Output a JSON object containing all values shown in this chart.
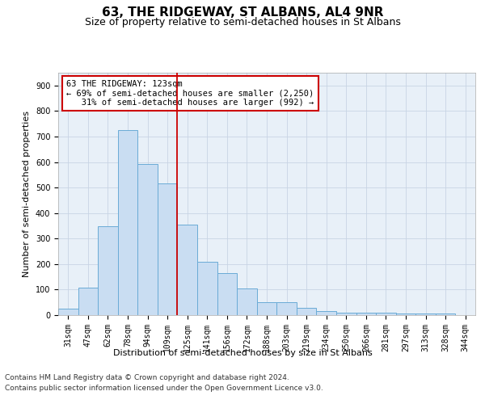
{
  "title": "63, THE RIDGEWAY, ST ALBANS, AL4 9NR",
  "subtitle": "Size of property relative to semi-detached houses in St Albans",
  "xlabel": "Distribution of semi-detached houses by size in St Albans",
  "ylabel": "Number of semi-detached properties",
  "categories": [
    "31sqm",
    "47sqm",
    "62sqm",
    "78sqm",
    "94sqm",
    "109sqm",
    "125sqm",
    "141sqm",
    "156sqm",
    "172sqm",
    "188sqm",
    "203sqm",
    "219sqm",
    "234sqm",
    "250sqm",
    "266sqm",
    "281sqm",
    "297sqm",
    "313sqm",
    "328sqm",
    "344sqm"
  ],
  "values": [
    25,
    108,
    348,
    725,
    593,
    515,
    355,
    208,
    165,
    103,
    50,
    50,
    30,
    15,
    10,
    10,
    10,
    5,
    5,
    5,
    0
  ],
  "bar_color": "#c9ddf2",
  "bar_edge_color": "#6aabd6",
  "grid_color": "#c8d4e4",
  "background_color": "#e8f0f8",
  "property_line_index": 6,
  "annotation_line1": "63 THE RIDGEWAY: 123sqm",
  "annotation_line2": "← 69% of semi-detached houses are smaller (2,250)",
  "annotation_line3": "   31% of semi-detached houses are larger (992) →",
  "annotation_box_color": "#ffffff",
  "annotation_box_edge": "#cc0000",
  "property_line_color": "#cc0000",
  "ylim": [
    0,
    950
  ],
  "yticks": [
    0,
    100,
    200,
    300,
    400,
    500,
    600,
    700,
    800,
    900
  ],
  "footer_line1": "Contains HM Land Registry data © Crown copyright and database right 2024.",
  "footer_line2": "Contains public sector information licensed under the Open Government Licence v3.0.",
  "title_fontsize": 11,
  "subtitle_fontsize": 9,
  "axis_label_fontsize": 8,
  "tick_fontsize": 7,
  "annotation_fontsize": 7.5,
  "footer_fontsize": 6.5
}
